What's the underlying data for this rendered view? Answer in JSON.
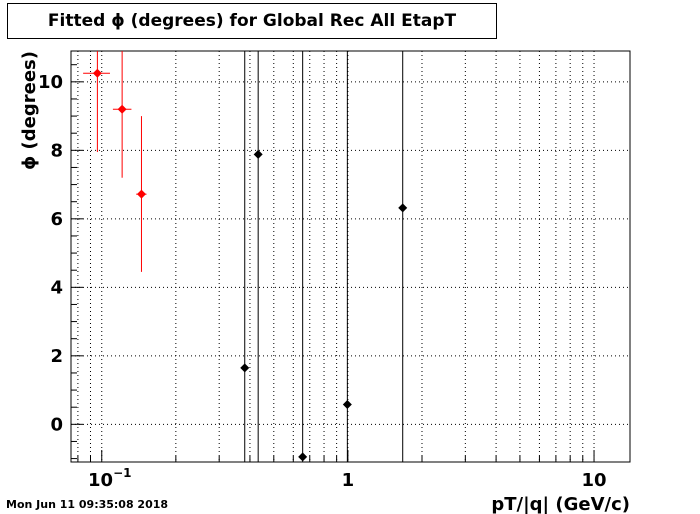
{
  "chart_data": {
    "type": "scatter",
    "title": "Fitted ϕ (degrees) for Global Rec All EtapT",
    "xlabel": "pT/|q| (GeV/c)",
    "ylabel": "ϕ (degrees)",
    "xscale": "log",
    "xlim": [
      0.075,
      14
    ],
    "ylim": [
      -1.1,
      10.9
    ],
    "grid": true,
    "x_ticks": [
      {
        "value": 0.1,
        "base": "10",
        "exp": "−1"
      },
      {
        "value": 1,
        "base": "1",
        "exp": ""
      },
      {
        "value": 10,
        "base": "10",
        "exp": ""
      }
    ],
    "y_ticks": [
      0,
      2,
      4,
      6,
      8,
      10
    ],
    "series": [
      {
        "color": "#ff0000",
        "points": [
          {
            "x": 0.096,
            "y": 10.25,
            "xlo": 0.084,
            "xhi": 0.108,
            "ylo": 7.95,
            "yhi": 10.9
          },
          {
            "x": 0.121,
            "y": 9.2,
            "xlo": 0.111,
            "xhi": 0.132,
            "ylo": 7.2,
            "yhi": 10.9
          },
          {
            "x": 0.145,
            "y": 6.72,
            "xlo": 0.138,
            "xhi": 0.152,
            "ylo": 4.45,
            "yhi": 9.0
          }
        ]
      },
      {
        "color": "#000000",
        "points": [
          {
            "x": 0.381,
            "y": 1.65,
            "xlo": 0.381,
            "xhi": 0.381,
            "ylo": -1.1,
            "yhi": 10.9
          },
          {
            "x": 0.432,
            "y": 7.88,
            "xlo": 0.432,
            "xhi": 0.432,
            "ylo": -1.1,
            "yhi": 10.9
          },
          {
            "x": 0.655,
            "y": -0.95,
            "xlo": 0.655,
            "xhi": 0.655,
            "ylo": -1.1,
            "yhi": 10.9
          },
          {
            "x": 0.995,
            "y": 0.58,
            "xlo": 0.995,
            "xhi": 0.995,
            "ylo": -1.1,
            "yhi": 10.9
          },
          {
            "x": 1.67,
            "y": 6.32,
            "xlo": 1.67,
            "xhi": 1.67,
            "ylo": -1.1,
            "yhi": 10.9
          }
        ]
      }
    ]
  },
  "timestamp": "Mon Jun 11 09:35:08 2018"
}
